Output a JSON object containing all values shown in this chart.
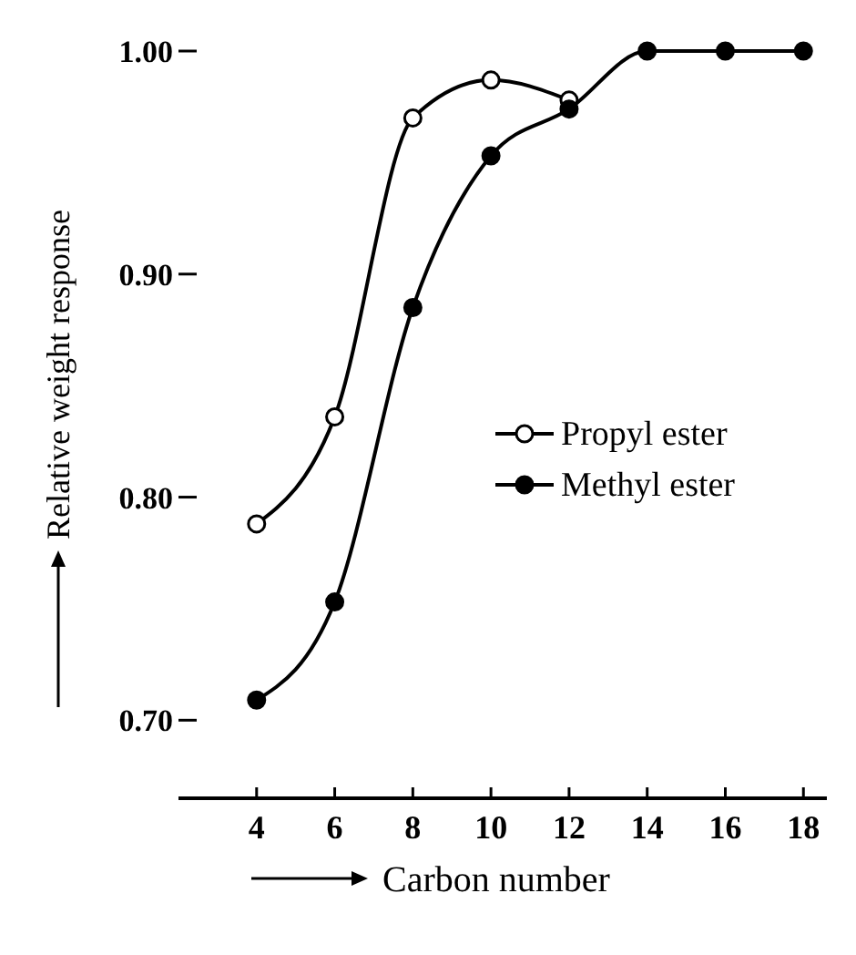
{
  "chart_data": {
    "type": "line",
    "xlabel": "Carbon number",
    "ylabel": "Relative weight response",
    "x": [
      4,
      6,
      8,
      10,
      12,
      14,
      16,
      18
    ],
    "series": [
      {
        "name": "Propyl ester",
        "color": "#000000",
        "colors": [
          "#ffffff",
          "#ffffff",
          "#ffffff",
          "#ffffff",
          "#ffffff",
          "#ffffff",
          "#ffffff",
          "#ffffff"
        ],
        "values": [
          0.788,
          0.836,
          0.97,
          0.987,
          0.978,
          null,
          null,
          null
        ]
      },
      {
        "name": "Methyl ester",
        "color": "#000000",
        "values": [
          0.709,
          0.753,
          0.885,
          0.953,
          0.974,
          1.0,
          1.0,
          1.0
        ]
      }
    ],
    "xlim": [
      2,
      18.6
    ],
    "ylim": [
      0.665,
      1.0
    ],
    "xticks": [
      4,
      6,
      8,
      10,
      12,
      14,
      16,
      18
    ],
    "yticks": [
      {
        "value": 0.7,
        "label": "0.70"
      },
      {
        "value": 0.8,
        "label": "0.80"
      },
      {
        "value": 0.9,
        "label": "0.90"
      },
      {
        "value": 1.0,
        "label": "1.00"
      }
    ],
    "marker": "circle",
    "line_style": "solid",
    "legend": "right",
    "grid": false
  }
}
